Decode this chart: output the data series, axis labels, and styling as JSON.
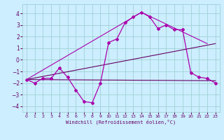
{
  "xlabel": "Windchill (Refroidissement éolien,°C)",
  "xlim": [
    -0.5,
    23.5
  ],
  "ylim": [
    -4.5,
    4.8
  ],
  "yticks": [
    -4,
    -3,
    -2,
    -1,
    0,
    1,
    2,
    3,
    4
  ],
  "xticks": [
    0,
    1,
    2,
    3,
    4,
    5,
    6,
    7,
    8,
    9,
    10,
    11,
    12,
    13,
    14,
    15,
    16,
    17,
    18,
    19,
    20,
    21,
    22,
    23
  ],
  "background_color": "#cceeff",
  "grid_color": "#99cccc",
  "line_color": "#aa00aa",
  "line_color_dark": "#660066",
  "main_series": {
    "x": [
      0,
      1,
      2,
      3,
      4,
      5,
      6,
      7,
      8,
      9,
      10,
      11,
      12,
      13,
      14,
      15,
      16,
      17,
      18,
      19,
      20,
      21,
      22,
      23
    ],
    "y": [
      -1.7,
      -2.0,
      -1.6,
      -1.6,
      -0.7,
      -1.5,
      -2.6,
      -3.6,
      -3.7,
      -2.0,
      1.5,
      1.8,
      3.2,
      3.7,
      4.1,
      3.7,
      2.7,
      3.0,
      2.6,
      2.6,
      -1.1,
      -1.5,
      -1.6,
      -2.0
    ]
  },
  "line1": {
    "x": [
      0,
      23
    ],
    "y": [
      -1.7,
      -1.8
    ]
  },
  "line2": {
    "x": [
      0,
      23
    ],
    "y": [
      -1.7,
      1.4
    ]
  },
  "line3": {
    "x": [
      0,
      14,
      22
    ],
    "y": [
      -1.7,
      4.1,
      1.4
    ]
  }
}
